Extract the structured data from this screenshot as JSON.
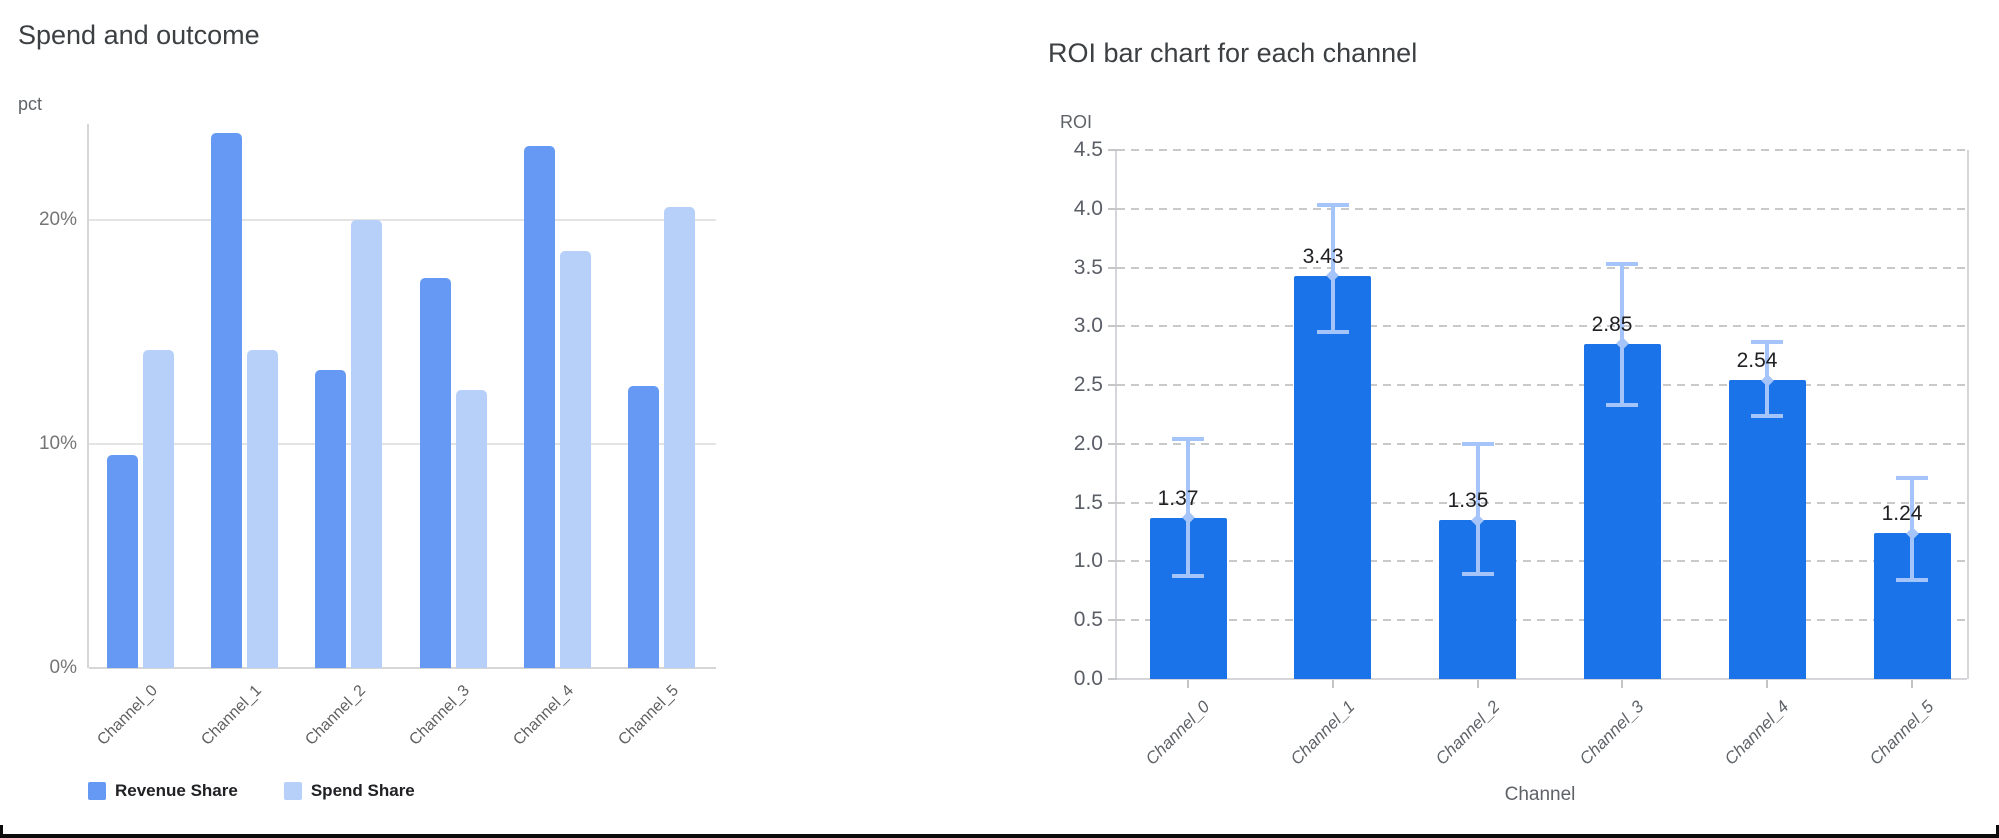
{
  "frame": {
    "border_color": "#0b0b0b",
    "background": "#ffffff"
  },
  "chart_data": [
    {
      "type": "bar",
      "title": "Spend and outcome",
      "ylabel": "pct",
      "xlabel": "",
      "categories": [
        "Channel_0",
        "Channel_1",
        "Channel_2",
        "Channel_3",
        "Channel_4",
        "Channel_5"
      ],
      "series": [
        {
          "name": "Revenue Share",
          "color": "#6699f4",
          "values": [
            9.5,
            23.9,
            13.3,
            17.4,
            23.3,
            12.6
          ]
        },
        {
          "name": "Spend Share",
          "color": "#b7d0fa",
          "values": [
            14.2,
            14.2,
            20.0,
            12.4,
            18.6,
            20.6
          ]
        }
      ],
      "y_ticks": [
        {
          "v": 0,
          "label": "0%"
        },
        {
          "v": 10,
          "label": "10%"
        },
        {
          "v": 20,
          "label": "20%"
        }
      ],
      "ylim": [
        0,
        24.3
      ],
      "grid": "horizontal-solid",
      "legend_position": "bottom",
      "gridline_color": "#e4e4e4",
      "axis_color": "#d6d6d6"
    },
    {
      "type": "bar",
      "title": "ROI bar chart for each channel",
      "ylabel": "ROI",
      "xlabel": "Channel",
      "categories": [
        "Channel_0",
        "Channel_1",
        "Channel_2",
        "Channel_3",
        "Channel_4",
        "Channel_5"
      ],
      "values": [
        1.37,
        3.43,
        1.35,
        2.85,
        2.54,
        1.24
      ],
      "value_labels": [
        "1.37",
        "3.43",
        "1.35",
        "2.85",
        "2.54",
        "1.24"
      ],
      "error_low": [
        0.88,
        2.95,
        0.89,
        2.33,
        2.24,
        0.84
      ],
      "error_high": [
        2.04,
        4.03,
        2.0,
        3.53,
        2.87,
        1.71
      ],
      "y_ticks": [
        {
          "v": 0.0,
          "label": "0.0"
        },
        {
          "v": 0.5,
          "label": "0.5"
        },
        {
          "v": 1.0,
          "label": "1.0"
        },
        {
          "v": 1.5,
          "label": "1.5"
        },
        {
          "v": 2.0,
          "label": "2.0"
        },
        {
          "v": 2.5,
          "label": "2.5"
        },
        {
          "v": 3.0,
          "label": "3.0"
        },
        {
          "v": 3.5,
          "label": "3.5"
        },
        {
          "v": 4.0,
          "label": "4.0"
        },
        {
          "v": 4.5,
          "label": "4.5"
        }
      ],
      "ylim": [
        0,
        4.5
      ],
      "grid": "horizontal-dashed",
      "bar_color": "#1a73e8",
      "error_color": "#a5c5fa",
      "gridline_color": "#c9c9c9",
      "axis_color": "#d4d6da"
    }
  ]
}
